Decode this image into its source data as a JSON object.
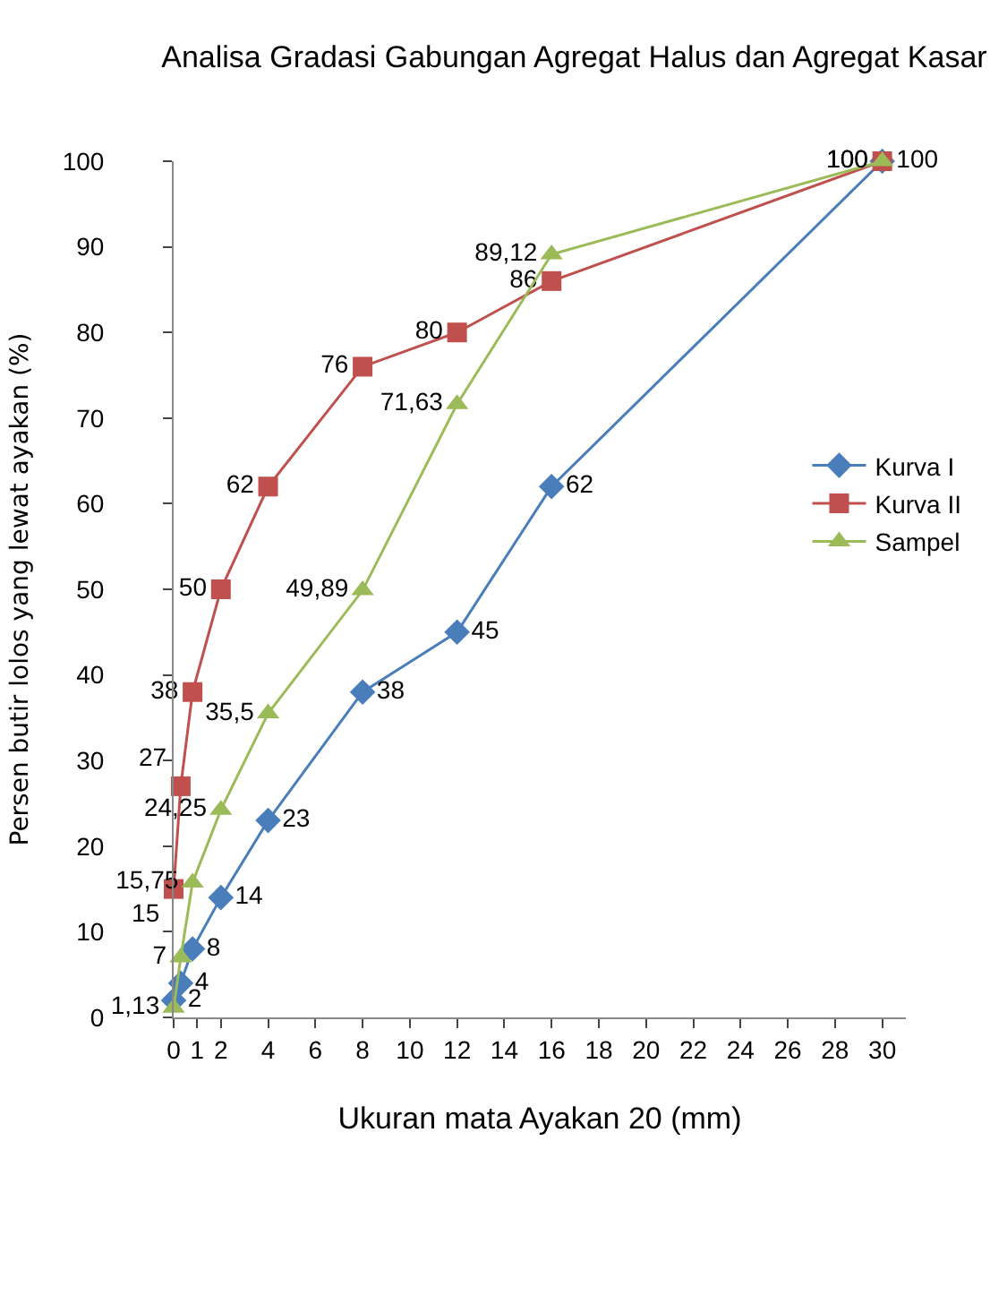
{
  "chart_data": {
    "type": "line",
    "title": "Analisa Gradasi Gabungan Agregat Halus dan Agregat Kasar",
    "xlabel": "Ukuran mata Ayakan 20 (mm)",
    "ylabel": "Persen butir lolos yang lewat ayakan (%)",
    "x": [
      0,
      0.3,
      0.8,
      2,
      4,
      8,
      12,
      16,
      30
    ],
    "series": [
      {
        "name": "Kurva I",
        "color": "#4a7ebb",
        "marker": "diamond",
        "values": [
          2,
          4,
          8,
          14,
          23,
          38,
          45,
          62,
          100
        ],
        "value_labels": [
          "2",
          "4",
          "8",
          "14",
          "23",
          "38",
          "45",
          "62",
          "100"
        ]
      },
      {
        "name": "Kurva II",
        "color": "#c0504d",
        "marker": "square",
        "values": [
          15,
          27,
          38,
          50,
          62,
          76,
          80,
          86,
          100
        ],
        "value_labels": [
          "15",
          "27",
          "38",
          "50",
          "62",
          "76",
          "80",
          "86",
          "100"
        ]
      },
      {
        "name": "Sampel",
        "color": "#9bbb59",
        "marker": "triangle",
        "values": [
          1.13,
          7,
          15.75,
          24.25,
          35.5,
          49.89,
          71.63,
          89.12,
          100
        ],
        "value_labels": [
          "1,13",
          "7",
          "15,75",
          "24,25",
          "35,5",
          "49,89",
          "71,63",
          "89,12",
          "100"
        ]
      }
    ],
    "xlim": [
      0,
      31
    ],
    "xticks": [
      0,
      1,
      2,
      4,
      6,
      8,
      10,
      12,
      14,
      16,
      18,
      20,
      22,
      24,
      26,
      28,
      30
    ],
    "ylim": [
      0,
      100
    ],
    "yticks": [
      0,
      10,
      20,
      30,
      40,
      50,
      60,
      70,
      80,
      90,
      100
    ],
    "legend": "right",
    "line_style": "solid"
  }
}
